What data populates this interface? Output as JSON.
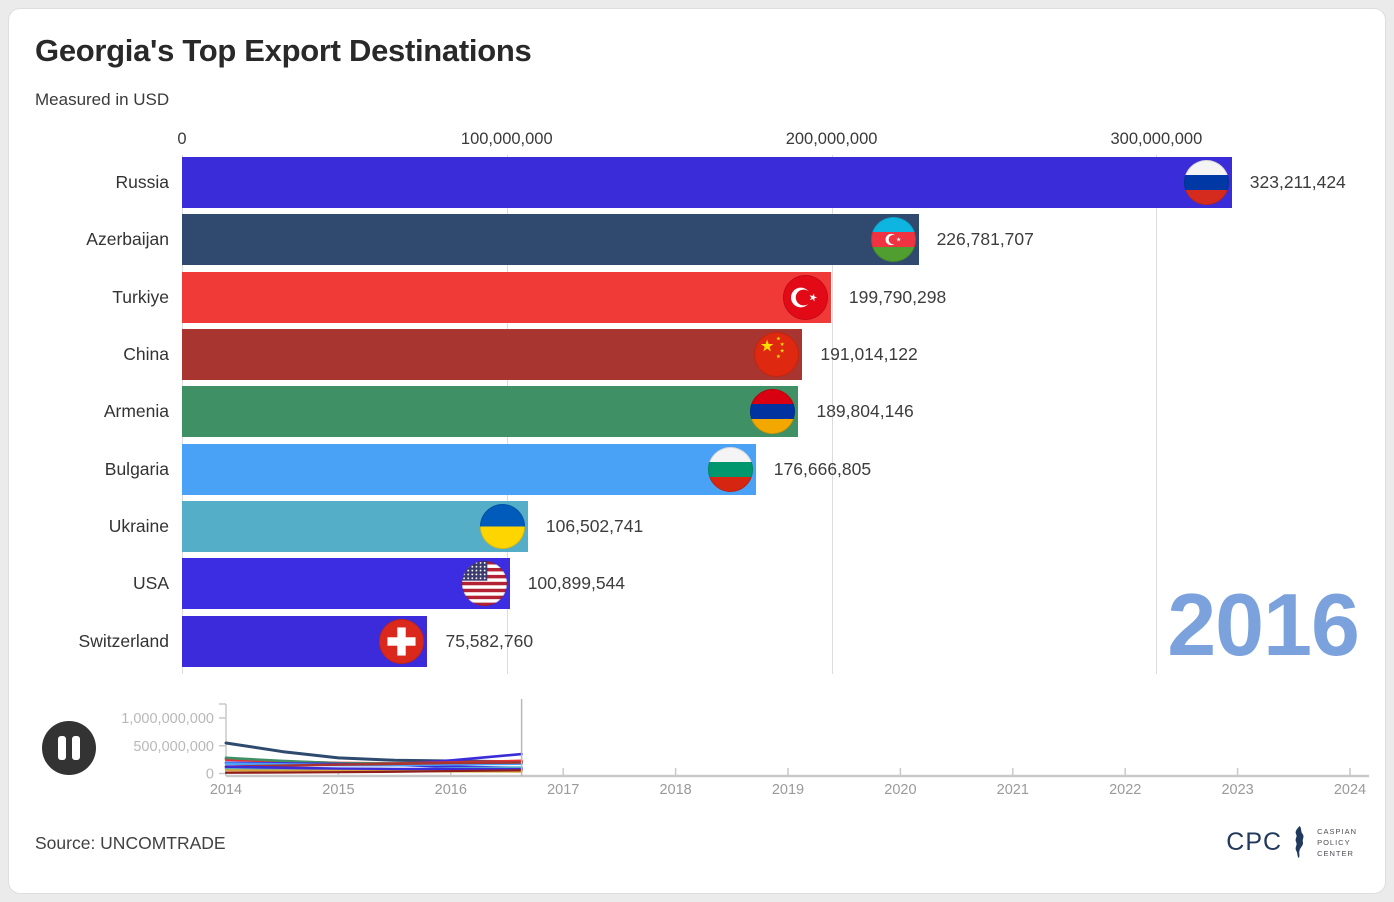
{
  "header": {
    "title": "Georgia's Top Export Destinations",
    "subtitle": "Measured in USD"
  },
  "year_label": "2016",
  "source": "Source: UNCOMTRADE",
  "logo": {
    "abbr": "CPC",
    "lines": [
      "CASPIAN",
      "POLICY",
      "CENTER"
    ],
    "color": "#21395c",
    "icon": "caspian-sea-icon"
  },
  "controls": {
    "pause_icon": "pause-icon"
  },
  "palette": {
    "page_bg": "#ebebeb",
    "card_bg": "#ffffff",
    "grid": "#dcdcdc",
    "axis_text": "#3a3a3a",
    "year_text": "#7ba2dc",
    "pause_bg": "#333333",
    "timeline_axis": "#c9c9c9",
    "timeline_tick_text": "#9a9a9a",
    "timeline_ylabel_text": "#b8b8b8"
  },
  "chart_data": [
    {
      "type": "bar",
      "orientation": "horizontal",
      "title": "Georgia's Top Export Destinations",
      "units": "USD",
      "xlim": [
        0,
        363000000
      ],
      "grid": true,
      "x_ticks": [
        {
          "value": 0,
          "label": "0"
        },
        {
          "value": 100000000,
          "label": "100,000,000"
        },
        {
          "value": 200000000,
          "label": "200,000,000"
        },
        {
          "value": 300000000,
          "label": "300,000,000"
        }
      ],
      "rows": [
        {
          "country": "Russia",
          "value": 323211424,
          "label": "323,211,424",
          "color": "#3a2cd8",
          "flag": "russia"
        },
        {
          "country": "Azerbaijan",
          "value": 226781707,
          "label": "226,781,707",
          "color": "#2f4a6e",
          "flag": "azerbaijan"
        },
        {
          "country": "Turkiye",
          "value": 199790298,
          "label": "199,790,298",
          "color": "#ef3a37",
          "flag": "turkiye"
        },
        {
          "country": "China",
          "value": 191014122,
          "label": "191,014,122",
          "color": "#a93531",
          "flag": "china"
        },
        {
          "country": "Armenia",
          "value": 189804146,
          "label": "189,804,146",
          "color": "#3f9064",
          "flag": "armenia"
        },
        {
          "country": "Bulgaria",
          "value": 176666805,
          "label": "176,666,805",
          "color": "#4aa2f6",
          "flag": "bulgaria"
        },
        {
          "country": "Ukraine",
          "value": 106502741,
          "label": "106,502,741",
          "color": "#55aec7",
          "flag": "ukraine"
        },
        {
          "country": "USA",
          "value": 100899544,
          "label": "100,899,544",
          "color": "#3c2de2",
          "flag": "usa"
        },
        {
          "country": "Switzerland",
          "value": 75582760,
          "label": "75,582,760",
          "color": "#3b2bdb",
          "flag": "switzerland"
        }
      ]
    },
    {
      "type": "line",
      "name": "timeline",
      "xlim": [
        2014,
        2024
      ],
      "ylim": [
        0,
        1250000000
      ],
      "playhead_x": 2016.63,
      "x_ticks": [
        {
          "value": 2014,
          "label": "2014"
        },
        {
          "value": 2015,
          "label": "2015"
        },
        {
          "value": 2016,
          "label": "2016"
        },
        {
          "value": 2017,
          "label": "2017"
        },
        {
          "value": 2018,
          "label": "2018"
        },
        {
          "value": 2019,
          "label": "2019"
        },
        {
          "value": 2020,
          "label": "2020"
        },
        {
          "value": 2021,
          "label": "2021"
        },
        {
          "value": 2022,
          "label": "2022"
        },
        {
          "value": 2023,
          "label": "2023"
        },
        {
          "value": 2024,
          "label": "2024"
        }
      ],
      "y_ticks": [
        {
          "value": 0,
          "label": "0"
        },
        {
          "value": 500000000,
          "label": "500,000,000"
        },
        {
          "value": 1000000000,
          "label": "1,000,000,000"
        }
      ],
      "x": [
        2014,
        2014.5,
        2015,
        2015.5,
        2016,
        2016.63
      ],
      "series": [
        {
          "name": "Azerbaijan",
          "color": "#2e4a6e",
          "width": 3,
          "values": [
            550000000,
            395000000,
            282000000,
            238000000,
            226000000,
            212000000
          ]
        },
        {
          "name": "Russia",
          "color": "#3a2cd8",
          "width": 2.6,
          "values": [
            272000000,
            205000000,
            165000000,
            162000000,
            235000000,
            350000000
          ]
        },
        {
          "name": "Turkiye",
          "color": "#e63332",
          "width": 2.6,
          "values": [
            248000000,
            215000000,
            190000000,
            181000000,
            199000000,
            228000000
          ]
        },
        {
          "name": "Armenia",
          "color": "#3f9064",
          "width": 2.6,
          "values": [
            283000000,
            226000000,
            187000000,
            177000000,
            184000000,
            191000000
          ]
        },
        {
          "name": "USA",
          "color": "#3c2de2",
          "width": 2.6,
          "values": [
            193000000,
            181000000,
            171000000,
            157000000,
            122000000,
            101000000
          ]
        },
        {
          "name": "Bulgaria",
          "color": "#4aa2f6",
          "width": 2.6,
          "values": [
            179000000,
            164000000,
            151000000,
            150000000,
            166000000,
            177000000
          ]
        },
        {
          "name": "Ukraine",
          "color": "#55aec7",
          "width": 2.6,
          "values": [
            95000000,
            78000000,
            65000000,
            71000000,
            92000000,
            107000000
          ]
        },
        {
          "name": "China",
          "color": "#a93531",
          "width": 2.6,
          "values": [
            122000000,
            141000000,
            160000000,
            174000000,
            191000000,
            199000000
          ]
        },
        {
          "name": "Switzerland",
          "color": "#3b2bdb",
          "width": 2.6,
          "values": [
            124000000,
            104000000,
            87000000,
            80000000,
            77000000,
            76000000
          ]
        },
        {
          "name": "",
          "color": "#d9a43a",
          "width": 2.2,
          "values": [
            58000000,
            52000000,
            47000000,
            42000000,
            38000000,
            34000000
          ]
        },
        {
          "name": "",
          "color": "#8f1f1c",
          "width": 2.2,
          "values": [
            14000000,
            17000000,
            24000000,
            31000000,
            44000000,
            58000000
          ]
        }
      ]
    }
  ]
}
